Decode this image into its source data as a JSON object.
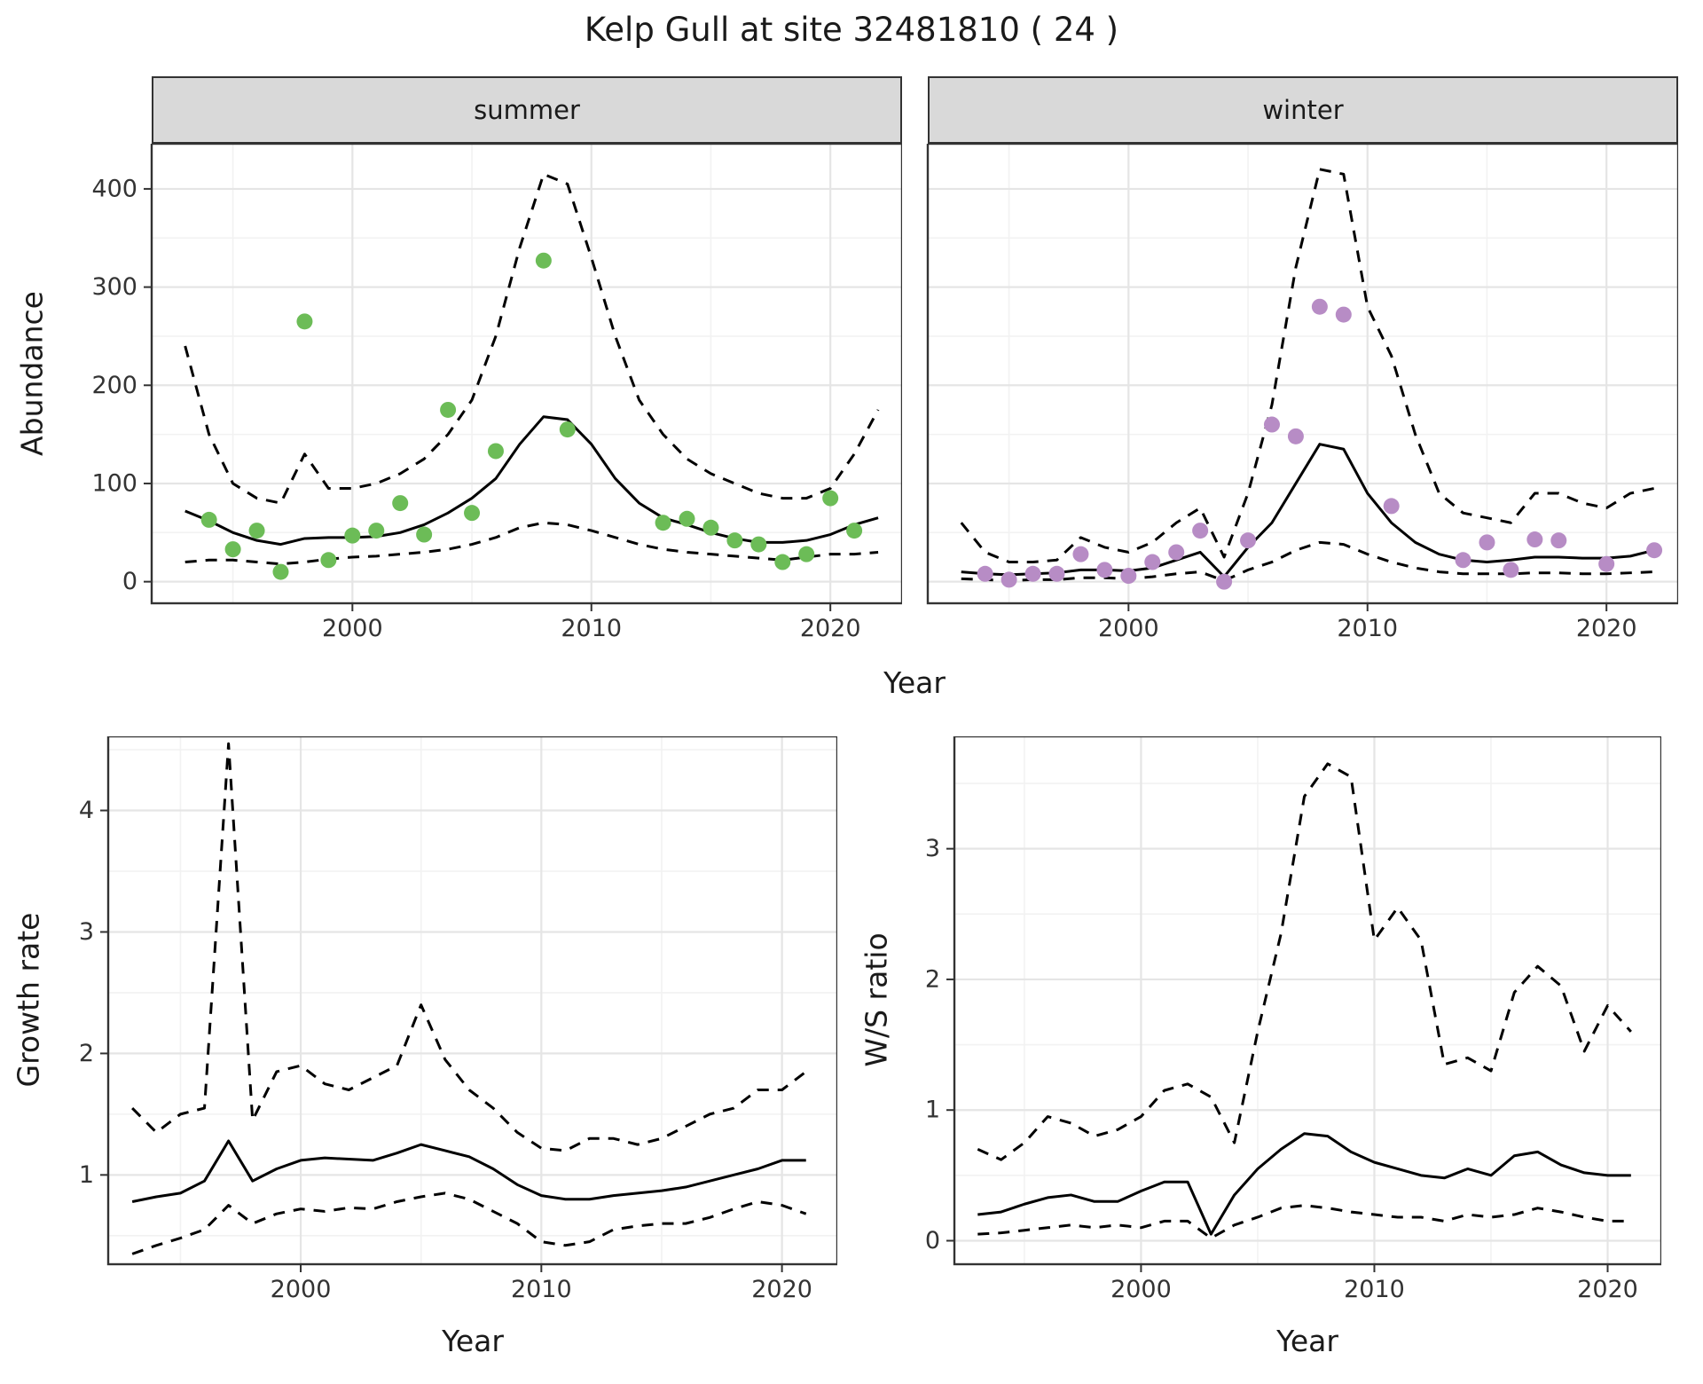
{
  "title": "Kelp Gull at site 32481810 ( 24 )",
  "labels": {
    "abundance_y": "Abundance",
    "year_x": "Year",
    "growth_y": "Growth rate",
    "ws_y": "W/S ratio",
    "facet_summer": "summer",
    "facet_winter": "winter"
  },
  "colors": {
    "summer_points": "#6cbc57",
    "winter_points": "#b78cc5",
    "line": "#000000",
    "strip_fill": "#d9d9d9",
    "panel_border": "#333333",
    "grid_major": "#e5e5e5",
    "grid_minor": "#f2f2f2",
    "background": "#ffffff"
  },
  "chart_data": [
    {
      "id": "abundance-summer",
      "type": "line",
      "facet": "summer",
      "xlabel": "Year",
      "ylabel": "Abundance",
      "xlim": [
        1991.6,
        2023
      ],
      "ylim": [
        -22,
        446
      ],
      "xticks": [
        2000,
        2010,
        2020
      ],
      "xtick_labels": [
        "2000",
        "2010",
        "2020"
      ],
      "yticks": [
        0,
        100,
        200,
        300,
        400
      ],
      "xminor": [
        1995,
        2005,
        2015
      ],
      "yminor": [
        50,
        150,
        250,
        350
      ],
      "line_x": [
        1993,
        1994,
        1995,
        1996,
        1997,
        1998,
        1999,
        2000,
        2001,
        2002,
        2003,
        2004,
        2005,
        2006,
        2007,
        2008,
        2009,
        2010,
        2011,
        2012,
        2013,
        2014,
        2015,
        2016,
        2017,
        2018,
        2019,
        2020,
        2021,
        2022
      ],
      "lines": [
        {
          "name": "estimate",
          "style": "solid",
          "y": [
            72,
            62,
            50,
            42,
            38,
            44,
            45,
            45,
            46,
            50,
            58,
            70,
            85,
            105,
            140,
            168,
            165,
            140,
            105,
            80,
            65,
            58,
            50,
            44,
            40,
            40,
            42,
            48,
            58,
            65
          ]
        },
        {
          "name": "upper-ci",
          "style": "dashed",
          "y": [
            240,
            150,
            100,
            85,
            80,
            130,
            95,
            95,
            100,
            110,
            125,
            150,
            185,
            250,
            340,
            415,
            405,
            330,
            250,
            185,
            150,
            125,
            110,
            100,
            90,
            85,
            85,
            95,
            130,
            175
          ]
        },
        {
          "name": "lower-ci",
          "style": "dashed",
          "y": [
            20,
            22,
            22,
            20,
            18,
            20,
            23,
            25,
            26,
            28,
            30,
            33,
            38,
            45,
            55,
            60,
            58,
            52,
            45,
            38,
            33,
            30,
            28,
            26,
            24,
            22,
            25,
            28,
            28,
            30
          ]
        }
      ],
      "points": {
        "color": "#6cbc57",
        "x": [
          1994,
          1995,
          1996,
          1997,
          1998,
          1999,
          2000,
          2001,
          2002,
          2003,
          2004,
          2005,
          2006,
          2008,
          2009,
          2013,
          2014,
          2015,
          2016,
          2017,
          2018,
          2019,
          2020,
          2021
        ],
        "y": [
          63,
          33,
          52,
          10,
          265,
          22,
          47,
          52,
          80,
          48,
          175,
          70,
          133,
          327,
          155,
          60,
          64,
          55,
          42,
          38,
          20,
          28,
          85,
          52
        ]
      }
    },
    {
      "id": "abundance-winter",
      "type": "line",
      "facet": "winter",
      "xlabel": "Year",
      "ylabel": "Abundance",
      "xlim": [
        1991.6,
        2023
      ],
      "ylim": [
        -22,
        446
      ],
      "xticks": [
        2000,
        2010,
        2020
      ],
      "xtick_labels": [
        "2000",
        "2010",
        "2020"
      ],
      "yticks": [
        0,
        100,
        200,
        300,
        400
      ],
      "xminor": [
        1995,
        2005,
        2015
      ],
      "yminor": [
        50,
        150,
        250,
        350
      ],
      "line_x": [
        1993,
        1994,
        1995,
        1996,
        1997,
        1998,
        1999,
        2000,
        2001,
        2002,
        2003,
        2004,
        2005,
        2006,
        2007,
        2008,
        2009,
        2010,
        2011,
        2012,
        2013,
        2014,
        2015,
        2016,
        2017,
        2018,
        2019,
        2020,
        2021,
        2022
      ],
      "lines": [
        {
          "name": "estimate",
          "style": "solid",
          "y": [
            10,
            8,
            7,
            8,
            9,
            12,
            12,
            11,
            14,
            22,
            30,
            5,
            35,
            60,
            100,
            140,
            135,
            90,
            60,
            40,
            28,
            22,
            20,
            22,
            25,
            25,
            24,
            24,
            26,
            32
          ]
        },
        {
          "name": "upper-ci",
          "style": "dashed",
          "y": [
            60,
            30,
            20,
            20,
            22,
            45,
            35,
            30,
            40,
            60,
            75,
            25,
            90,
            180,
            320,
            420,
            415,
            280,
            230,
            150,
            90,
            70,
            65,
            60,
            90,
            90,
            80,
            75,
            90,
            95
          ]
        },
        {
          "name": "lower-ci",
          "style": "dashed",
          "y": [
            3,
            2,
            1,
            2,
            2,
            4,
            4,
            3,
            5,
            8,
            10,
            1,
            12,
            20,
            32,
            40,
            38,
            28,
            20,
            14,
            10,
            8,
            8,
            8,
            9,
            9,
            8,
            8,
            9,
            10
          ]
        }
      ],
      "points": {
        "color": "#b78cc5",
        "x": [
          1994,
          1995,
          1996,
          1997,
          1998,
          1999,
          2000,
          2001,
          2002,
          2003,
          2004,
          2005,
          2006,
          2007,
          2008,
          2009,
          2011,
          2014,
          2015,
          2016,
          2017,
          2018,
          2020,
          2022
        ],
        "y": [
          8,
          2,
          8,
          8,
          28,
          12,
          6,
          20,
          30,
          52,
          0,
          42,
          160,
          148,
          280,
          272,
          77,
          22,
          40,
          12,
          43,
          42,
          18,
          32
        ]
      }
    },
    {
      "id": "growth-rate",
      "type": "line",
      "facet": null,
      "xlabel": "Year",
      "ylabel": "Growth rate",
      "xlim": [
        1992,
        2022.3
      ],
      "ylim": [
        0.265,
        4.61
      ],
      "xticks": [
        2000,
        2010,
        2020
      ],
      "xtick_labels": [
        "2000",
        "2010",
        "2020"
      ],
      "yticks": [
        1,
        2,
        3,
        4
      ],
      "xminor": [
        1995,
        2005,
        2015
      ],
      "yminor": [
        0.5,
        1.5,
        2.5,
        3.5,
        4.5
      ],
      "line_x": [
        1993,
        1994,
        1995,
        1996,
        1997,
        1998,
        1999,
        2000,
        2001,
        2002,
        2003,
        2004,
        2005,
        2006,
        2007,
        2008,
        2009,
        2010,
        2011,
        2012,
        2013,
        2014,
        2015,
        2016,
        2017,
        2018,
        2019,
        2020,
        2021
      ],
      "lines": [
        {
          "name": "estimate",
          "style": "solid",
          "y": [
            0.78,
            0.82,
            0.85,
            0.95,
            1.28,
            0.95,
            1.05,
            1.12,
            1.14,
            1.13,
            1.12,
            1.18,
            1.25,
            1.2,
            1.15,
            1.05,
            0.92,
            0.83,
            0.8,
            0.8,
            0.83,
            0.85,
            0.87,
            0.9,
            0.95,
            1.0,
            1.05,
            1.12,
            1.12
          ]
        },
        {
          "name": "upper-ci",
          "style": "dashed",
          "y": [
            1.55,
            1.35,
            1.5,
            1.55,
            4.55,
            1.45,
            1.85,
            1.9,
            1.75,
            1.7,
            1.8,
            1.9,
            2.4,
            1.95,
            1.7,
            1.55,
            1.35,
            1.22,
            1.2,
            1.3,
            1.3,
            1.25,
            1.3,
            1.4,
            1.5,
            1.55,
            1.7,
            1.7,
            1.85
          ]
        },
        {
          "name": "lower-ci",
          "style": "dashed",
          "y": [
            0.35,
            0.42,
            0.48,
            0.55,
            0.75,
            0.6,
            0.68,
            0.72,
            0.7,
            0.73,
            0.72,
            0.78,
            0.82,
            0.85,
            0.8,
            0.7,
            0.6,
            0.45,
            0.42,
            0.45,
            0.55,
            0.58,
            0.6,
            0.6,
            0.65,
            0.72,
            0.78,
            0.75,
            0.68
          ]
        }
      ],
      "points": null
    },
    {
      "id": "ws-ratio",
      "type": "line",
      "facet": null,
      "xlabel": "Year",
      "ylabel": "W/S ratio",
      "xlim": [
        1992,
        2022.3
      ],
      "ylim": [
        -0.18,
        3.86
      ],
      "xticks": [
        2000,
        2010,
        2020
      ],
      "xtick_labels": [
        "2000",
        "2010",
        "2020"
      ],
      "yticks": [
        0,
        1,
        2,
        3
      ],
      "xminor": [
        1995,
        2005,
        2015
      ],
      "yminor": [
        0.5,
        1.5,
        2.5,
        3.5
      ],
      "line_x": [
        1993,
        1994,
        1995,
        1996,
        1997,
        1998,
        1999,
        2000,
        2001,
        2002,
        2003,
        2004,
        2005,
        2006,
        2007,
        2008,
        2009,
        2010,
        2011,
        2012,
        2013,
        2014,
        2015,
        2016,
        2017,
        2018,
        2019,
        2020,
        2021
      ],
      "lines": [
        {
          "name": "estimate",
          "style": "solid",
          "y": [
            0.2,
            0.22,
            0.28,
            0.33,
            0.35,
            0.3,
            0.3,
            0.38,
            0.45,
            0.45,
            0.05,
            0.35,
            0.55,
            0.7,
            0.82,
            0.8,
            0.68,
            0.6,
            0.55,
            0.5,
            0.48,
            0.55,
            0.5,
            0.65,
            0.68,
            0.58,
            0.52,
            0.5,
            0.5
          ]
        },
        {
          "name": "upper-ci",
          "style": "dashed",
          "y": [
            0.7,
            0.62,
            0.75,
            0.95,
            0.9,
            0.8,
            0.85,
            0.95,
            1.15,
            1.2,
            1.1,
            0.75,
            1.6,
            2.35,
            3.4,
            3.65,
            3.55,
            2.3,
            2.55,
            2.3,
            1.35,
            1.4,
            1.3,
            1.9,
            2.1,
            1.95,
            1.45,
            1.8,
            1.6
          ]
        },
        {
          "name": "lower-ci",
          "style": "dashed",
          "y": [
            0.05,
            0.06,
            0.08,
            0.1,
            0.12,
            0.1,
            0.12,
            0.1,
            0.15,
            0.15,
            0.02,
            0.12,
            0.18,
            0.25,
            0.27,
            0.25,
            0.22,
            0.2,
            0.18,
            0.18,
            0.15,
            0.2,
            0.18,
            0.2,
            0.25,
            0.22,
            0.18,
            0.15,
            0.15
          ]
        }
      ],
      "points": null
    }
  ]
}
